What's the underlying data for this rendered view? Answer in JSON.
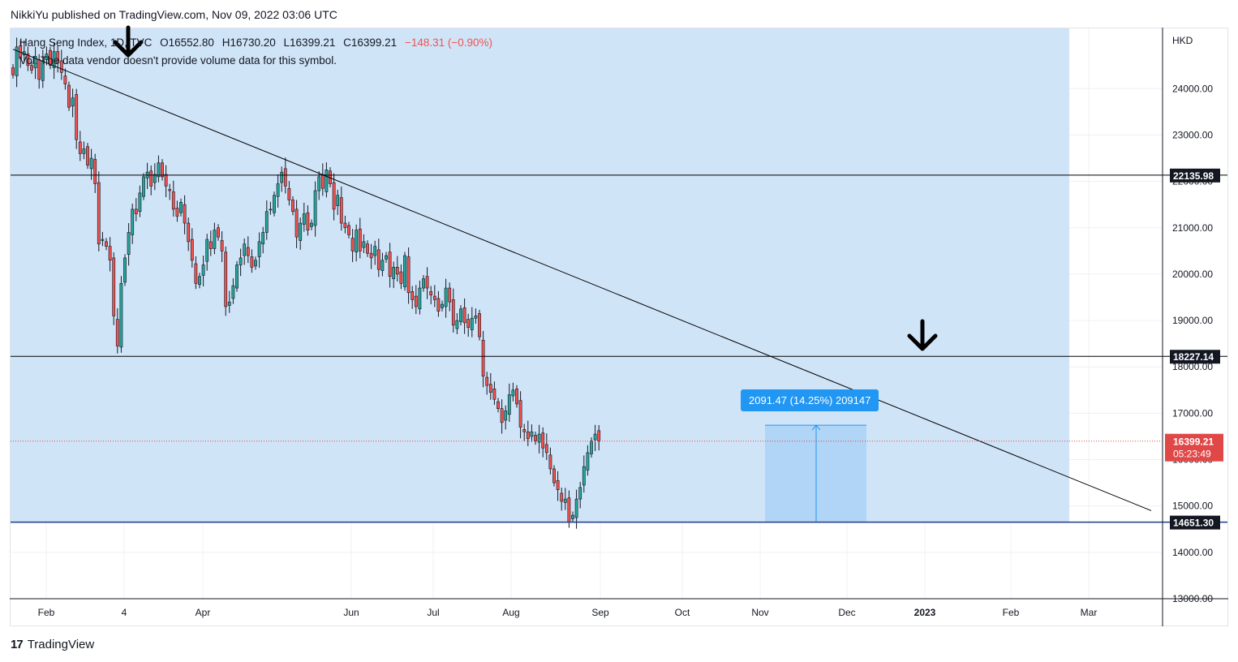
{
  "publisher_line": "NikkiYu published on TradingView.com, Nov 09, 2022 03:06 UTC",
  "legend": {
    "symbol": "Hang Seng Index, 1D, TVC",
    "open": "O16552.80",
    "high": "H16730.20",
    "low": "L16399.21",
    "close": "C16399.21",
    "change": "−148.31 (−0.90%)",
    "volume_note": "Vol: The data vendor doesn't provide volume data for this symbol."
  },
  "footer": {
    "brand": "TradingView",
    "logo_mark": "17"
  },
  "measure_label": "2091.47 (14.25%) 209147",
  "colors": {
    "up": "#26a69a",
    "down": "#ef5350",
    "zone_fill": "#d0e4f8",
    "measure_fill": "#a9d1f5",
    "line": "#000000",
    "support": "#1e3a8a",
    "current_price": "#e04848",
    "label_bg": "#131722"
  },
  "chart_data": {
    "type": "candlestick",
    "currency": "HKD",
    "y_range": [
      13000,
      25300
    ],
    "y_ticks": [
      "13000.00",
      "14000.00",
      "15000.00",
      "16000.00",
      "17000.00",
      "18000.00",
      "19000.00",
      "20000.00",
      "21000.00",
      "22000.00",
      "23000.00",
      "24000.00"
    ],
    "x_ticks": [
      "Feb",
      "4",
      "Apr",
      "Jun",
      "Jul",
      "Aug",
      "Sep",
      "Oct",
      "Nov",
      "Dec",
      "2023",
      "Feb",
      "Mar"
    ],
    "horizontal_levels": [
      {
        "label": "22135.98",
        "value": 22135.98
      },
      {
        "label": "18227.14",
        "value": 18227.14
      },
      {
        "label": "14651.30",
        "value": 14651.3
      }
    ],
    "current_price": {
      "value": 16399.21,
      "label": "16399.21",
      "countdown": "05:23:49"
    },
    "trendline": [
      {
        "bar": 0,
        "value": 24850
      },
      {
        "bar": 305,
        "value": 14900
      }
    ],
    "closes": [
      24300,
      24900,
      24650,
      24800,
      24500,
      24400,
      24700,
      24200,
      24600,
      24750,
      24500,
      24800,
      24550,
      24350,
      24100,
      23600,
      23800,
      22900,
      22600,
      22700,
      22350,
      22500,
      21950,
      20650,
      20750,
      20600,
      20300,
      19100,
      18450,
      19800,
      20350,
      20900,
      21400,
      21300,
      21750,
      22100,
      22200,
      21900,
      22150,
      22400,
      22100,
      21900,
      21800,
      21400,
      21250,
      21550,
      21100,
      20700,
      20300,
      19800,
      19950,
      20200,
      20750,
      20550,
      20950,
      20800,
      20500,
      19300,
      19400,
      19750,
      20200,
      20350,
      20650,
      20400,
      20150,
      20300,
      20700,
      20900,
      21350,
      21400,
      21700,
      21950,
      22200,
      21900,
      21600,
      21350,
      20800,
      21100,
      21300,
      20950,
      21100,
      21800,
      22100,
      21850,
      22250,
      21950,
      21400,
      21700,
      21100,
      21000,
      20850,
      20500,
      20950,
      20500,
      20700,
      20450,
      20350,
      20600,
      20100,
      20300,
      20400,
      19950,
      20150,
      20000,
      19800,
      20400,
      19600,
      19450,
      19300,
      19700,
      19900,
      19700,
      19550,
      19450,
      19200,
      19350,
      19700,
      19400,
      18900,
      19000,
      19250,
      18950,
      18850,
      19050,
      19100,
      18650,
      17800,
      17600,
      17450,
      17300,
      17100,
      16800,
      17050,
      17400,
      17500,
      17200,
      16700,
      16600,
      16450,
      16600,
      16400,
      16550,
      16250,
      16150,
      15800,
      15500,
      15350,
      15100,
      15150,
      14650,
      14800,
      15150,
      15400,
      15850,
      16150,
      16400,
      16550,
      16399
    ]
  }
}
